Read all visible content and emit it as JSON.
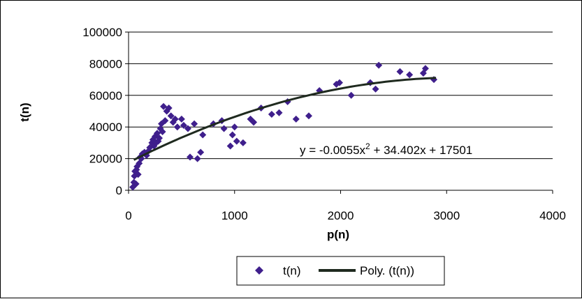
{
  "chart_data": {
    "type": "scatter",
    "title": "",
    "xlabel": "p(n)",
    "ylabel": "t(n)",
    "xlim": [
      0,
      4000
    ],
    "ylim": [
      0,
      100000
    ],
    "x_ticks": [
      0,
      1000,
      2000,
      3000,
      4000
    ],
    "y_ticks": [
      0,
      20000,
      40000,
      60000,
      80000,
      100000
    ],
    "x_tick_labels": [
      "0",
      "1000",
      "2000",
      "3000",
      "4000"
    ],
    "y_tick_labels": [
      "0",
      "20000",
      "40000",
      "60000",
      "80000",
      "100000"
    ],
    "grid": "horizontal",
    "legend_position": "bottom",
    "marker_color": "#3f1f8c",
    "trend_color": "#1f2a1f",
    "series": [
      {
        "name": "t(n)",
        "kind": "markers",
        "points": [
          [
            40,
            2000
          ],
          [
            50,
            5000
          ],
          [
            55,
            9000
          ],
          [
            60,
            12000
          ],
          [
            70,
            4000
          ],
          [
            75,
            13000
          ],
          [
            80,
            15000
          ],
          [
            90,
            10000
          ],
          [
            100,
            17000
          ],
          [
            110,
            21000
          ],
          [
            120,
            20000
          ],
          [
            130,
            23000
          ],
          [
            150,
            24000
          ],
          [
            170,
            22000
          ],
          [
            190,
            25000
          ],
          [
            200,
            27000
          ],
          [
            220,
            30000
          ],
          [
            230,
            32000
          ],
          [
            240,
            28000
          ],
          [
            250,
            34000
          ],
          [
            260,
            30000
          ],
          [
            270,
            36000
          ],
          [
            280,
            31000
          ],
          [
            290,
            33000
          ],
          [
            300,
            39000
          ],
          [
            310,
            42000
          ],
          [
            320,
            37000
          ],
          [
            330,
            53000
          ],
          [
            345,
            44000
          ],
          [
            360,
            50000
          ],
          [
            380,
            52000
          ],
          [
            400,
            47000
          ],
          [
            420,
            43000
          ],
          [
            440,
            45000
          ],
          [
            460,
            40000
          ],
          [
            500,
            45000
          ],
          [
            520,
            41000
          ],
          [
            560,
            39000
          ],
          [
            580,
            21000
          ],
          [
            620,
            42000
          ],
          [
            650,
            20000
          ],
          [
            680,
            24000
          ],
          [
            700,
            35000
          ],
          [
            800,
            42000
          ],
          [
            880,
            44000
          ],
          [
            900,
            39000
          ],
          [
            960,
            28000
          ],
          [
            980,
            35000
          ],
          [
            1000,
            40000
          ],
          [
            1020,
            31000
          ],
          [
            1080,
            30000
          ],
          [
            1150,
            45000
          ],
          [
            1180,
            43000
          ],
          [
            1250,
            52000
          ],
          [
            1350,
            48000
          ],
          [
            1420,
            49000
          ],
          [
            1500,
            56000
          ],
          [
            1580,
            45000
          ],
          [
            1700,
            47000
          ],
          [
            1800,
            63000
          ],
          [
            1960,
            67000
          ],
          [
            1990,
            68000
          ],
          [
            2100,
            60000
          ],
          [
            2280,
            68000
          ],
          [
            2330,
            64000
          ],
          [
            2360,
            79000
          ],
          [
            2560,
            75000
          ],
          [
            2650,
            73000
          ],
          [
            2780,
            74000
          ],
          [
            2800,
            77000
          ],
          [
            2880,
            70000
          ]
        ]
      },
      {
        "name": "Poly. (t(n))",
        "kind": "trendline",
        "coefficients": {
          "a": -0.0055,
          "b": 34.402,
          "c": 17501
        },
        "x_range": [
          50,
          2900
        ]
      }
    ],
    "equation_label": {
      "prefix": "y = -0.0055x",
      "sup": "2",
      "suffix": " + 34.402x + 17501"
    }
  }
}
